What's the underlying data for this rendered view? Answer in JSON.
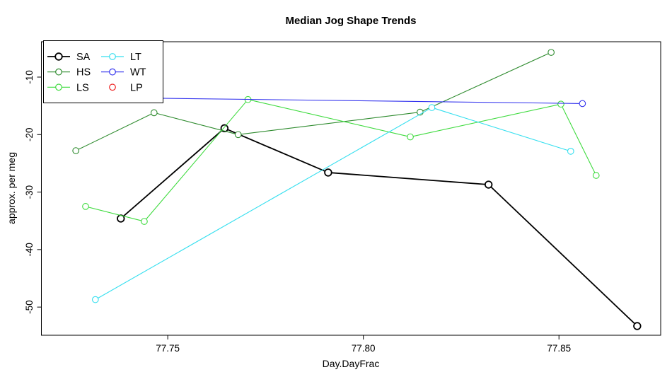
{
  "chart_data": {
    "type": "line",
    "title": "Median Jog Shape Trends",
    "xlabel": "Day.DayFrac",
    "ylabel": "approx. per meg",
    "xlim": [
      77.7177,
      77.876
    ],
    "ylim": [
      -54.9,
      -3.85
    ],
    "grid": false,
    "x_ticks": {
      "values": [
        77.75,
        77.8,
        77.85
      ],
      "labels": [
        "77.75",
        "77.80",
        "77.85"
      ]
    },
    "y_ticks": {
      "values": [
        -10,
        -20,
        -30,
        -40,
        -50
      ],
      "labels": [
        "-10",
        "-20",
        "-30",
        "-40",
        "-50"
      ]
    },
    "legend": {
      "position": "topleft",
      "columns": [
        [
          "SA",
          "HS",
          "LS"
        ],
        [
          "LT",
          "WT",
          "LP"
        ]
      ]
    },
    "series": [
      {
        "name": "SA",
        "color": "#000000",
        "line_width": 1.8,
        "marker": "open-circle",
        "legend_line": true,
        "points": [
          [
            77.738,
            -34.6
          ],
          [
            77.7645,
            -18.9
          ],
          [
            77.791,
            -26.6
          ],
          [
            77.832,
            -28.7
          ],
          [
            77.87,
            -53.3
          ]
        ]
      },
      {
        "name": "HS",
        "color": "#2E8B2E",
        "line_width": 1.1,
        "marker": "open-circle",
        "legend_line": true,
        "points": [
          [
            77.7265,
            -22.8
          ],
          [
            77.7465,
            -16.2
          ],
          [
            77.768,
            -20.0
          ],
          [
            77.8145,
            -16.1
          ],
          [
            77.848,
            -5.7
          ]
        ]
      },
      {
        "name": "LS",
        "color": "#3FDB3F",
        "line_width": 1.1,
        "marker": "open-circle",
        "legend_line": true,
        "points": [
          [
            77.729,
            -32.5
          ],
          [
            77.744,
            -35.1
          ],
          [
            77.7705,
            -13.9
          ],
          [
            77.812,
            -20.4
          ],
          [
            77.8505,
            -14.7
          ],
          [
            77.8595,
            -27.1
          ]
        ]
      },
      {
        "name": "LT",
        "color": "#35DFEF",
        "line_width": 1.1,
        "marker": "open-circle",
        "legend_line": true,
        "points": [
          [
            77.7315,
            -48.7
          ],
          [
            77.8175,
            -15.3
          ],
          [
            77.853,
            -22.9
          ]
        ]
      },
      {
        "name": "WT",
        "color": "#3333EE",
        "line_width": 1.1,
        "marker": "open-circle",
        "legend_line": true,
        "points": [
          [
            77.7265,
            -13.5
          ],
          [
            77.856,
            -14.6
          ]
        ]
      },
      {
        "name": "LP",
        "color": "#EE2222",
        "line_width": 1.1,
        "marker": "open-circle",
        "legend_line": false,
        "points": []
      }
    ]
  }
}
